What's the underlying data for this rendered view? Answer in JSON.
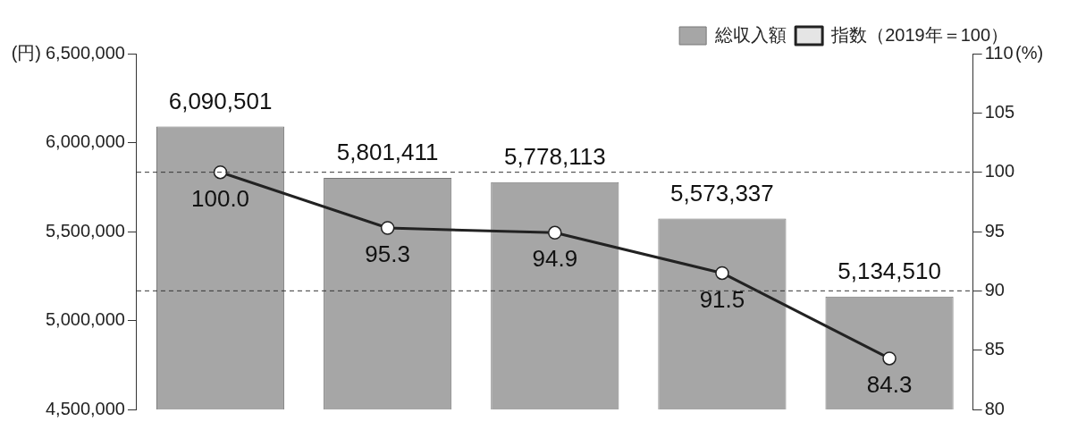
{
  "chart_data": {
    "type": "bar",
    "categories": [
      null,
      null,
      null,
      null,
      null
    ],
    "ylabel": "(円)",
    "y2label": "(%)",
    "series": [
      {
        "name": "総収入額",
        "color": "#a6a6a6",
        "values": [
          6090501,
          5801411,
          5778113,
          5573337,
          5134510
        ],
        "value_labels": [
          "6,090,501",
          "5,801,411",
          "5,778,113",
          "5,573,337",
          "5,134,510"
        ]
      },
      {
        "name": "指数（2019年＝100）",
        "type": "line",
        "axis": "y2",
        "color": "#222222",
        "marker": "circle",
        "values": [
          100.0,
          95.3,
          94.9,
          91.5,
          84.3
        ],
        "value_labels": [
          "100.0",
          "95.3",
          "94.9",
          "91.5",
          "84.3"
        ]
      }
    ],
    "ylim": [
      4500000,
      6500000
    ],
    "yticks": [
      {
        "value": 4500000,
        "label": "4,500,000"
      },
      {
        "value": 5000000,
        "label": "5,000,000"
      },
      {
        "value": 5500000,
        "label": "5,500,000"
      },
      {
        "value": 6000000,
        "label": "6,000,000"
      },
      {
        "value": 6500000,
        "label": "6,500,000"
      }
    ],
    "y2lim": [
      80,
      110
    ],
    "y2ticks": [
      80,
      85,
      90,
      95,
      100,
      105,
      110
    ],
    "ref_lines": [
      {
        "axis": "y2",
        "value": 100,
        "line_style": "dashed",
        "color": "#333333"
      },
      {
        "axis": "y2",
        "value": 90,
        "line_style": "dashed",
        "color": "#333333"
      }
    ],
    "legend": "top right",
    "grid": false
  }
}
